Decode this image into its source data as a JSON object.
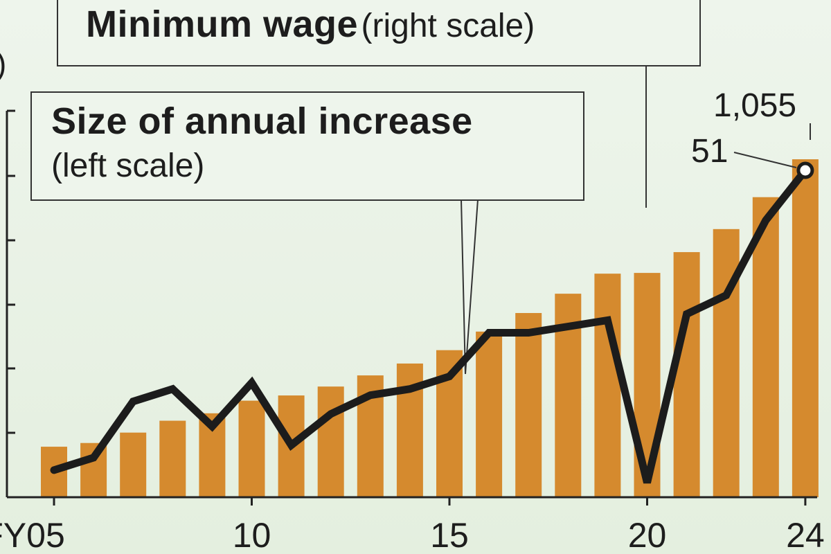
{
  "chart_data": {
    "type": "bar",
    "x_ticks": [
      "FY05",
      "10",
      "15",
      "20",
      "24"
    ],
    "x": [
      2005,
      2006,
      2007,
      2008,
      2009,
      2010,
      2011,
      2012,
      2013,
      2014,
      2015,
      2016,
      2017,
      2018,
      2019,
      2020,
      2021,
      2022,
      2023,
      2024
    ],
    "series": [
      {
        "name": "Minimum wage",
        "type": "bar",
        "axis": "right",
        "values": [
          668,
          673,
          687,
          703,
          713,
          730,
          737,
          749,
          764,
          780,
          798,
          823,
          848,
          874,
          901,
          902,
          930,
          961,
          1004,
          1055
        ]
      },
      {
        "name": "Size of annual increase",
        "type": "line",
        "axis": "left",
        "values": [
          3,
          5,
          14,
          16,
          10,
          17,
          7,
          12,
          15,
          16,
          18,
          25,
          25,
          26,
          27,
          1,
          28,
          31,
          43,
          51
        ]
      }
    ],
    "annotations": {
      "wage_last": "1,055",
      "increase_last": "51"
    },
    "left_unit_fragment": ")",
    "legend": {
      "wage_bold": "Minimum wage",
      "wage_light": "(right scale)",
      "increase_bold": "Size of annual increase",
      "increase_light": "(left scale)"
    },
    "colors": {
      "bars": "#d58a2e",
      "line": "#1c1c1c",
      "marker_fill": "#ffffff",
      "axis": "#222222"
    },
    "left_ylim": [
      0,
      60
    ],
    "right_ylim": [
      0,
      1200
    ]
  }
}
